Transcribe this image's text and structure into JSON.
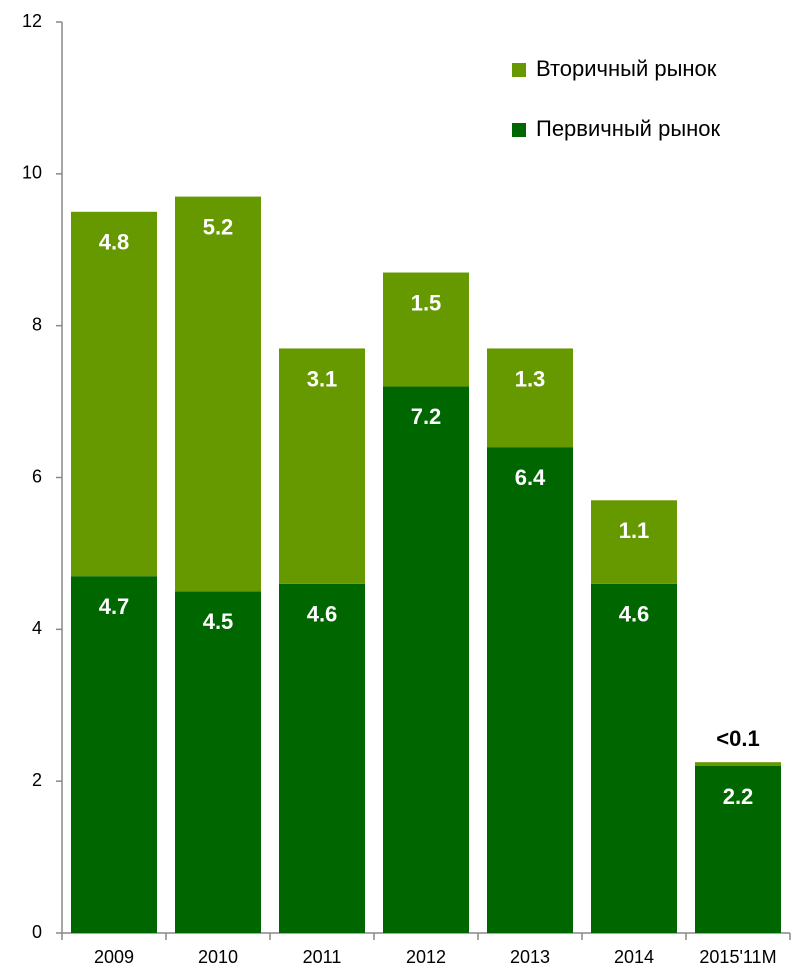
{
  "chart_data": {
    "type": "stacked_bar",
    "categories": [
      "2009",
      "2010",
      "2011",
      "2012",
      "2013",
      "2014",
      "2015'11M"
    ],
    "series": [
      {
        "name": "Первичный рынок",
        "color": "#006600",
        "values": [
          4.7,
          4.5,
          4.6,
          7.2,
          6.4,
          4.6,
          2.2
        ]
      },
      {
        "name": "Вторичный рынок",
        "color": "#669900",
        "values": [
          4.8,
          5.2,
          3.1,
          1.5,
          1.3,
          1.1,
          0.05
        ],
        "value_labels": [
          "4.8",
          "5.2",
          "3.1",
          "1.5",
          "1.3",
          "1.1",
          "<0.1"
        ]
      }
    ],
    "ylim": [
      0,
      12
    ],
    "yticks": [
      0,
      2,
      4,
      6,
      8,
      10,
      12
    ],
    "legend": "top-right",
    "grid": false
  }
}
